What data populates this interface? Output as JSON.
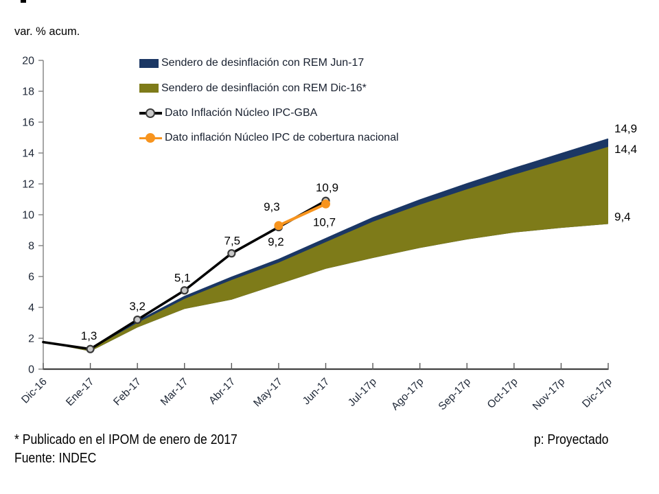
{
  "header": {
    "unit_label": "var. % acum."
  },
  "chart_data": {
    "type": "area+line",
    "title": "",
    "ylabel": "var. % acum.",
    "xlabel": "",
    "ylim": [
      0,
      20
    ],
    "ytick_step": 2,
    "grid": false,
    "legend_position": "top-left-inside",
    "categories": [
      "Dic-16",
      "Ene-17",
      "Feb-17",
      "Mar-17",
      "Abr-17",
      "May-17",
      "Jun-17",
      "Jul-17p",
      "Ago-17p",
      "Sep-17p",
      "Oct-17p",
      "Nov-17p",
      "Dic-17p"
    ],
    "series": [
      {
        "name": "Sendero de desinflación con REM Jun-17",
        "type": "band",
        "color": "#1B3764",
        "upper": [
          1.75,
          1.3,
          3.1,
          4.7,
          5.95,
          7.1,
          8.45,
          9.8,
          10.95,
          12.0,
          13.0,
          13.95,
          14.9
        ],
        "lower": [
          1.75,
          1.15,
          2.7,
          3.9,
          4.5,
          5.5,
          6.5,
          7.2,
          7.85,
          8.4,
          8.85,
          9.15,
          9.4
        ]
      },
      {
        "name": "Sendero de desinflación con REM Dic-16*",
        "type": "band",
        "color": "#7E7B19",
        "upper": [
          1.75,
          1.28,
          3.0,
          4.55,
          5.77,
          6.9,
          8.23,
          9.55,
          10.65,
          11.65,
          12.6,
          13.5,
          14.4
        ],
        "lower": [
          1.75,
          1.15,
          2.7,
          3.9,
          4.5,
          5.5,
          6.5,
          7.2,
          7.85,
          8.4,
          8.85,
          9.15,
          9.4
        ]
      },
      {
        "name": "Dato Inflación Núcleo IPC-GBA",
        "type": "line",
        "color": "#000000",
        "marker_fill": "#C9C9C9",
        "marker_stroke": "#3A3A3A",
        "values": [
          1.75,
          1.3,
          3.2,
          5.1,
          7.5,
          9.2,
          10.9,
          null,
          null,
          null,
          null,
          null,
          null
        ],
        "labels": [
          "",
          "1,3",
          "3,2",
          "5,1",
          "7,5",
          "9,2",
          "10,9"
        ]
      },
      {
        "name": "Dato inflación Núcleo IPC de cobertura nacional",
        "type": "line",
        "color": "#F7941E",
        "marker_fill": "#F7941E",
        "marker_stroke": "#F7941E",
        "values": [
          null,
          null,
          null,
          null,
          null,
          9.3,
          10.7,
          null,
          null,
          null,
          null,
          null,
          null
        ],
        "labels": [
          "",
          "",
          "",
          "",
          "",
          "9,3",
          "10,7"
        ]
      }
    ],
    "end_labels": [
      {
        "text": "14,9",
        "value": 14.9,
        "color": "#000000"
      },
      {
        "text": "14,4",
        "value": 14.4,
        "color": "#000000"
      },
      {
        "text": "9,4",
        "value": 9.4,
        "color": "#000000"
      }
    ],
    "axis_color": "#808080",
    "x_axis_color": "#404040",
    "tick_color": "#595959"
  },
  "footer": {
    "footnote": "* Publicado en el IPOM de enero de 2017",
    "projected_note": "p: Proyectado",
    "source": "Fuente: INDEC"
  }
}
